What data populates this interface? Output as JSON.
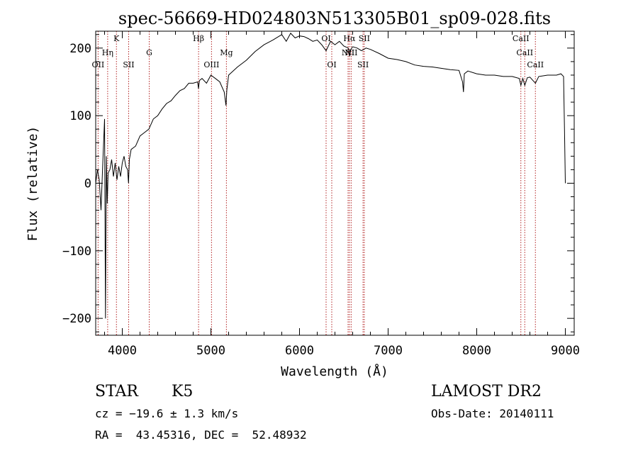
{
  "chart_data": {
    "type": "line",
    "title": "spec-56669-HD024803N513305B01_sp09-028.fits",
    "xlabel": "Wavelength (Å)",
    "ylabel": "Flux (relative)",
    "xlim": [
      3700,
      9100
    ],
    "ylim": [
      -225,
      225
    ],
    "xticks": [
      4000,
      5000,
      6000,
      7000,
      8000,
      9000
    ],
    "xtick_labels": [
      "4000",
      "5000",
      "6000",
      "7000",
      "8000",
      "9000"
    ],
    "yticks": [
      -200,
      -100,
      0,
      100,
      200
    ],
    "ytick_labels": [
      "−200",
      "−100",
      "0",
      "100",
      "200"
    ],
    "grid": false,
    "series": [
      {
        "color": "#000000",
        "x": [
          3700,
          3720,
          3740,
          3760,
          3780,
          3800,
          3810,
          3820,
          3830,
          3840,
          3860,
          3880,
          3900,
          3920,
          3940,
          3960,
          3980,
          4000,
          4020,
          4040,
          4060,
          4070,
          4080,
          4100,
          4150,
          4200,
          4250,
          4300,
          4350,
          4400,
          4450,
          4500,
          4550,
          4600,
          4650,
          4700,
          4750,
          4800,
          4850,
          4860,
          4870,
          4900,
          4950,
          5000,
          5050,
          5100,
          5150,
          5170,
          5180,
          5200,
          5300,
          5400,
          5500,
          5600,
          5700,
          5800,
          5850,
          5900,
          5950,
          6000,
          6050,
          6100,
          6150,
          6200,
          6250,
          6300,
          6350,
          6400,
          6450,
          6500,
          6550,
          6563,
          6580,
          6600,
          6650,
          6700,
          6750,
          6800,
          6900,
          7000,
          7100,
          7200,
          7300,
          7400,
          7500,
          7600,
          7700,
          7800,
          7840,
          7850,
          7860,
          7900,
          8000,
          8100,
          8200,
          8300,
          8400,
          8480,
          8498,
          8520,
          8542,
          8570,
          8600,
          8662,
          8700,
          8800,
          8900,
          8950,
          8980,
          8990,
          9000
        ],
        "y": [
          0,
          20,
          5,
          -40,
          30,
          95,
          -200,
          40,
          -30,
          15,
          20,
          35,
          10,
          30,
          5,
          25,
          10,
          30,
          40,
          25,
          20,
          0,
          35,
          50,
          55,
          70,
          75,
          80,
          95,
          100,
          110,
          118,
          122,
          130,
          137,
          140,
          148,
          148,
          150,
          140,
          152,
          155,
          148,
          160,
          155,
          150,
          135,
          115,
          138,
          160,
          172,
          182,
          195,
          205,
          212,
          220,
          210,
          222,
          215,
          218,
          217,
          214,
          210,
          212,
          205,
          196,
          210,
          205,
          210,
          203,
          200,
          188,
          198,
          202,
          200,
          196,
          200,
          198,
          192,
          185,
          183,
          180,
          175,
          173,
          172,
          170,
          168,
          167,
          150,
          135,
          162,
          166,
          162,
          160,
          160,
          158,
          158,
          155,
          145,
          155,
          145,
          156,
          157,
          148,
          158,
          160,
          160,
          162,
          158,
          80,
          0
        ]
      }
    ],
    "lines": [
      {
        "label": "OII",
        "wavelength": 3727
      },
      {
        "label": "Hη",
        "wavelength": 3835
      },
      {
        "label": "K",
        "wavelength": 3934
      },
      {
        "label": "SII",
        "wavelength": 4072
      },
      {
        "label": "G",
        "wavelength": 4304
      },
      {
        "label": "Hβ",
        "wavelength": 4861
      },
      {
        "label": "OIII",
        "wavelength": 5007
      },
      {
        "label": "Mg",
        "wavelength": 5175
      },
      {
        "label": "OI",
        "wavelength": 6300
      },
      {
        "label": "OI",
        "wavelength": 6364
      },
      {
        "label": "Hα",
        "wavelength": 6563
      },
      {
        "label": "NII",
        "wavelength": 6548
      },
      {
        "label": "NII",
        "wavelength": 6583
      },
      {
        "label": "SII",
        "wavelength": 6717
      },
      {
        "label": "SII",
        "wavelength": 6731
      },
      {
        "label": "CaII",
        "wavelength": 8498
      },
      {
        "label": "CaII",
        "wavelength": 8542
      },
      {
        "label": "CaII",
        "wavelength": 8662
      }
    ]
  },
  "info": {
    "object_type": "STAR",
    "subclass": "K5",
    "survey": "LAMOST DR2",
    "redshift": "cz = −19.6 ± 1.3 km/s",
    "obs_date": "Obs-Date: 20140111",
    "coords": "RA =  43.45316, DEC =  52.48932"
  }
}
